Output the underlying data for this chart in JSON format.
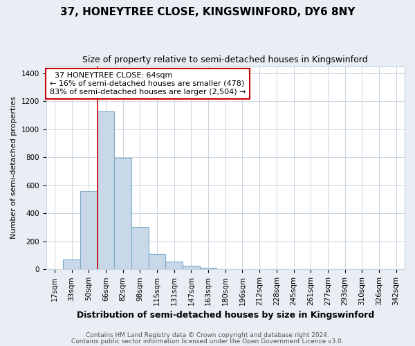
{
  "title1": "37, HONEYTREE CLOSE, KINGSWINFORD, DY6 8NY",
  "title2": "Size of property relative to semi-detached houses in Kingswinford",
  "xlabel": "Distribution of semi-detached houses by size in Kingswinford",
  "ylabel": "Number of semi-detached properties",
  "categories": [
    "17sqm",
    "33sqm",
    "50sqm",
    "66sqm",
    "82sqm",
    "98sqm",
    "115sqm",
    "131sqm",
    "147sqm",
    "163sqm",
    "180sqm",
    "196sqm",
    "212sqm",
    "228sqm",
    "245sqm",
    "261sqm",
    "277sqm",
    "293sqm",
    "310sqm",
    "326sqm",
    "342sqm"
  ],
  "values": [
    0,
    70,
    560,
    1125,
    795,
    305,
    110,
    55,
    25,
    10,
    0,
    0,
    0,
    0,
    0,
    0,
    0,
    0,
    0,
    0,
    0
  ],
  "bar_color": "#c8d8e8",
  "bar_edge_color": "#7aaac8",
  "highlight_line_color": "#cc0000",
  "highlight_line_index": 3,
  "annotation_text": "  37 HONEYTREE CLOSE: 64sqm\n← 16% of semi-detached houses are smaller (478)\n83% of semi-detached houses are larger (2,504) →",
  "annotation_box_color": "#ffffff",
  "annotation_box_edge": "#cc0000",
  "ylim": [
    0,
    1450
  ],
  "yticks": [
    0,
    200,
    400,
    600,
    800,
    1000,
    1200,
    1400
  ],
  "footer1": "Contains HM Land Registry data © Crown copyright and database right 2024.",
  "footer2": "Contains public sector information licensed under the Open Government Licence v3.0.",
  "plot_bg_color": "#ffffff",
  "fig_bg_color": "#e8eef4",
  "grid_color": "#c8d4e0",
  "title1_fontsize": 11,
  "title2_fontsize": 9,
  "xlabel_fontsize": 9,
  "ylabel_fontsize": 8,
  "tick_fontsize": 7.5,
  "footer_fontsize": 6.5
}
